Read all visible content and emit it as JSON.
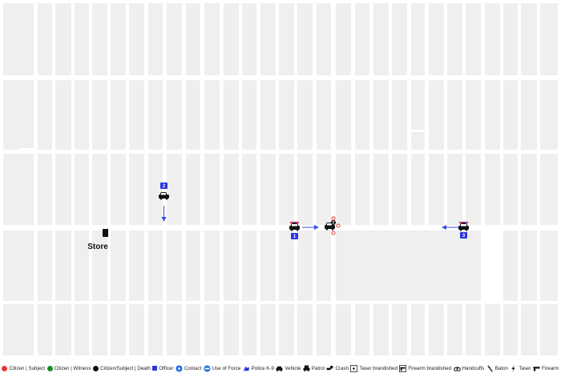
{
  "map": {
    "store_label": "Store",
    "markers": [
      {
        "num": "1",
        "label": "Patrol 1"
      },
      {
        "num": "2",
        "label": "Patrol 2"
      },
      {
        "num": "3",
        "label": "Patrol 3"
      }
    ]
  },
  "legend": {
    "items": [
      {
        "label": "Citizen | Subject",
        "color": "#e53935",
        "icon": "red-dot-icon"
      },
      {
        "label": "Citizen | Witness",
        "color": "#1b8a2e",
        "icon": "green-dot-icon"
      },
      {
        "label": "Citizen/Subject | Death",
        "color": "#111111",
        "icon": "black-dot-icon"
      },
      {
        "label": "Officer",
        "color": "#2d35e0",
        "icon": "blue-square-icon"
      },
      {
        "label": "Contact",
        "color": "#1f6fe8",
        "icon": "contact-icon"
      },
      {
        "label": "Use of Force",
        "color": "#1f6fe8",
        "icon": "use-of-force-icon"
      },
      {
        "label": "Police K-9",
        "color": "#2d35e0",
        "icon": "k9-icon"
      },
      {
        "label": "Vehicle",
        "color": "#111111",
        "icon": "vehicle-icon"
      },
      {
        "label": "Patrol",
        "color": "#111111",
        "icon": "patrol-icon"
      },
      {
        "label": "Crash",
        "color": "#111111",
        "icon": "crash-icon"
      },
      {
        "label": "Taser brandished",
        "color": "#111111",
        "icon": "taser-brandished-icon"
      },
      {
        "label": "Firearm brandished",
        "color": "#111111",
        "icon": "firearm-brandished-icon"
      },
      {
        "label": "Handcuffs",
        "color": "#111111",
        "icon": "handcuffs-icon"
      },
      {
        "label": "Baton",
        "color": "#111111",
        "icon": "baton-icon"
      },
      {
        "label": "Taser",
        "color": "#111111",
        "icon": "taser-icon"
      },
      {
        "label": "Firearm",
        "color": "#111111",
        "icon": "firearm-icon"
      }
    ]
  },
  "colors": {
    "block_fill": "#efeff0",
    "road": "#ffffff",
    "marker_blue": "#2d35e0",
    "arrow_blue": "#3b4ce8",
    "crash_red": "#e53935"
  }
}
